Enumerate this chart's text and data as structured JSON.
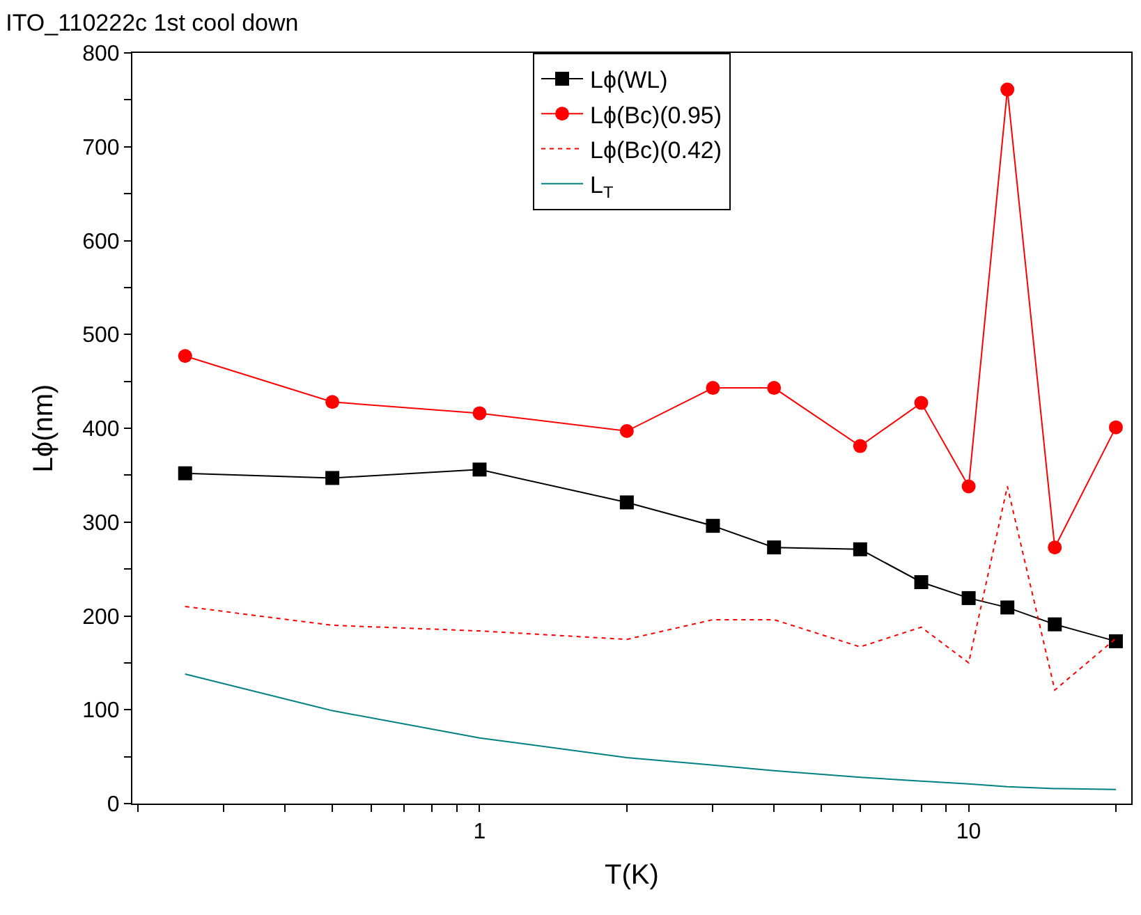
{
  "chart_data": {
    "type": "line",
    "title": "ITO_110222c 1st cool down",
    "xlabel": "T(K)",
    "ylabel": "Lϕ(nm)",
    "log": "x",
    "x": [
      0.25,
      0.5,
      1,
      2,
      3,
      4,
      6,
      8,
      10,
      12,
      15,
      20
    ],
    "xlim": [
      0.195,
      21.5
    ],
    "xticks": [
      {
        "value": 0.2,
        "label": null
      },
      {
        "value": 0.3,
        "label": null
      },
      {
        "value": 0.4,
        "label": null
      },
      {
        "value": 0.5,
        "label": null
      },
      {
        "value": 0.6,
        "label": null
      },
      {
        "value": 0.7,
        "label": null
      },
      {
        "value": 0.8,
        "label": null
      },
      {
        "value": 0.9,
        "label": null
      },
      1,
      {
        "value": 2,
        "label": null
      },
      {
        "value": 3,
        "label": null
      },
      {
        "value": 4,
        "label": null
      },
      {
        "value": 5,
        "label": null
      },
      {
        "value": 6,
        "label": null
      },
      {
        "value": 7,
        "label": null
      },
      {
        "value": 8,
        "label": null
      },
      {
        "value": 9,
        "label": null
      },
      10,
      {
        "value": 20,
        "label": null
      }
    ],
    "ylim": [
      0,
      800
    ],
    "yticks": [
      0,
      {
        "value": 50,
        "label": null
      },
      100,
      {
        "value": 150,
        "label": null
      },
      200,
      {
        "value": 250,
        "label": null
      },
      300,
      {
        "value": 350,
        "label": null
      },
      400,
      {
        "value": 450,
        "label": null
      },
      500,
      {
        "value": 550,
        "label": null
      },
      600,
      {
        "value": 650,
        "label": null
      },
      700,
      {
        "value": 750,
        "label": null
      },
      800
    ],
    "legend": "top",
    "series": [
      {
        "name": "Lϕ(WL)",
        "color": "#000000",
        "marker": "square",
        "line_style": "solid",
        "values": [
          352,
          347,
          356,
          321,
          296,
          273,
          271,
          236,
          219,
          209,
          191,
          173
        ]
      },
      {
        "name": "Lϕ(Bc)(0.95)",
        "color": "#ff0000",
        "marker": "circle",
        "line_style": "solid",
        "values": [
          477,
          428,
          416,
          397,
          443,
          443,
          381,
          427,
          338,
          761,
          273,
          401
        ]
      },
      {
        "name": "Lϕ(Bc)(0.42)",
        "color": "#ff0000",
        "marker": "none",
        "line_style": "dotted",
        "values": [
          210,
          190,
          184,
          175,
          196,
          196,
          167,
          188,
          150,
          338,
          121,
          176
        ]
      },
      {
        "name": "L$_{T}$",
        "color": "#008080",
        "marker": "none",
        "line_style": "solid",
        "values": [
          138,
          99,
          70,
          49,
          41,
          35,
          28,
          24,
          21,
          18,
          16,
          15
        ]
      }
    ]
  }
}
